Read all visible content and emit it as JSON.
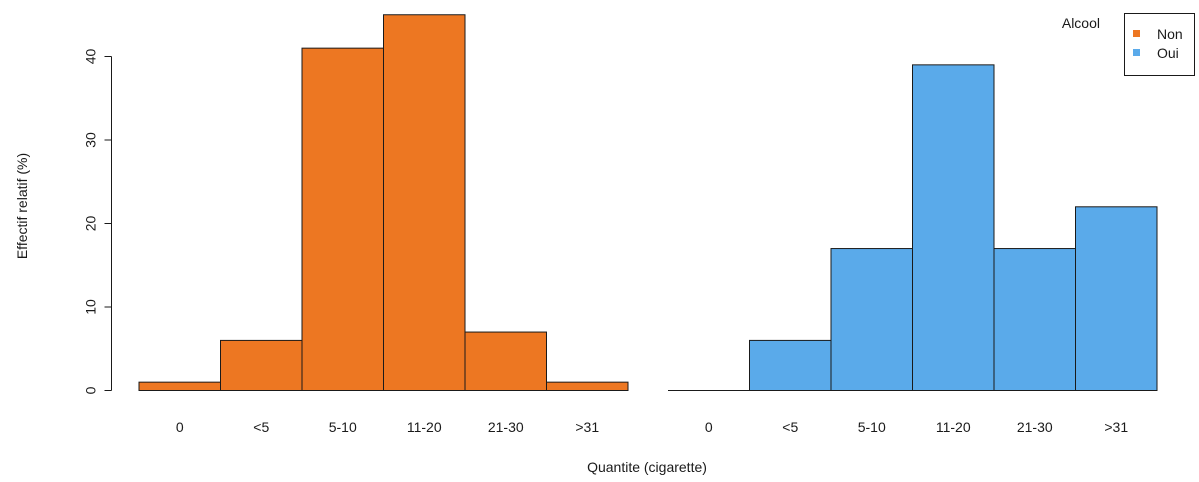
{
  "chart_data": {
    "type": "bar",
    "xlabel": "Quantite (cigarette)",
    "ylabel": "Effectif relatif (%)",
    "ylim": [
      0,
      45
    ],
    "yticks": [
      0,
      10,
      20,
      30,
      40
    ],
    "categories": [
      "0",
      "<5",
      "5-10",
      "11-20",
      "21-30",
      ">31"
    ],
    "legend": {
      "title": "Alcool",
      "position": "top-right"
    },
    "series": [
      {
        "name": "Non",
        "color": "#ED7722",
        "values": [
          1,
          6,
          41,
          45,
          7,
          1
        ]
      },
      {
        "name": "Oui",
        "color": "#5AAAEA",
        "values": [
          0,
          6,
          17,
          39,
          17,
          22
        ]
      }
    ]
  }
}
